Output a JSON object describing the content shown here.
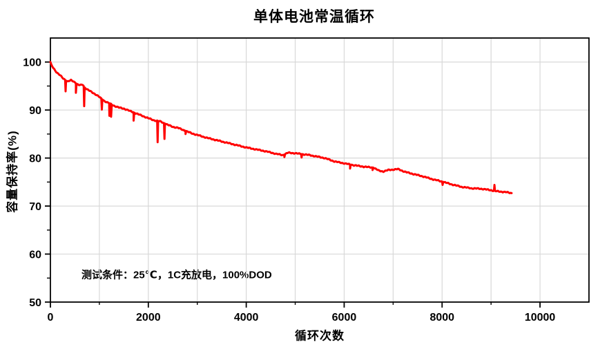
{
  "title": "单体电池常温循环",
  "y_axis_label": "容量保持率(%)",
  "x_axis_label": "循环次数",
  "annotation": "测试条件：25℃，1C充放电，100%DOD",
  "colors": {
    "curve": "#FF0000",
    "grid": "#D8D8D8",
    "axis": "#000000",
    "background": "#FFFFFF"
  },
  "chart_data": {
    "type": "line",
    "title": "单体电池常温循环",
    "xlabel": "循环次数",
    "ylabel": "容量保持率(%)",
    "xlim": [
      0,
      11000
    ],
    "ylim": [
      50,
      105
    ],
    "x_ticks_major": [
      0,
      2000,
      4000,
      6000,
      8000,
      10000
    ],
    "x_ticks_minor": [
      1000,
      3000,
      5000,
      7000,
      9000
    ],
    "y_ticks_major": [
      50,
      60,
      70,
      80,
      90,
      100
    ],
    "y_ticks_minor": [
      55,
      65,
      75,
      85,
      95
    ],
    "grid": {
      "x_step": 1000,
      "y_step": 10
    },
    "legend": null,
    "annotation": "测试条件：25℃，1C充放电，100%DOD",
    "series": [
      {
        "name": "容量保持率(%)",
        "color": "#FF0000",
        "start": [
          0,
          100
        ],
        "end": [
          9420,
          72.7
        ],
        "trend_points": [
          [
            0,
            100
          ],
          [
            30,
            99.2
          ],
          [
            60,
            98.8
          ],
          [
            100,
            98.2
          ],
          [
            150,
            97.6
          ],
          [
            200,
            97.2
          ],
          [
            250,
            96.7
          ],
          [
            300,
            96.3
          ],
          [
            350,
            95.9
          ],
          [
            420,
            96.2
          ],
          [
            470,
            96.0
          ],
          [
            520,
            95.6
          ],
          [
            570,
            95.2
          ],
          [
            620,
            95.2
          ],
          [
            660,
            95.3
          ],
          [
            700,
            94.7
          ],
          [
            750,
            94.3
          ],
          [
            800,
            94.0
          ],
          [
            850,
            93.7
          ],
          [
            900,
            93.4
          ],
          [
            950,
            93.1
          ],
          [
            1000,
            92.7
          ],
          [
            1100,
            91.9
          ],
          [
            1200,
            91.4
          ],
          [
            1300,
            90.9
          ],
          [
            1400,
            90.5
          ],
          [
            1500,
            90.3
          ],
          [
            1600,
            89.9
          ],
          [
            1700,
            89.5
          ],
          [
            1800,
            89.1
          ],
          [
            1900,
            88.7
          ],
          [
            2000,
            88.3
          ],
          [
            2100,
            87.9
          ],
          [
            2250,
            87.6
          ],
          [
            2400,
            86.9
          ],
          [
            2500,
            86.5
          ],
          [
            2600,
            86.3
          ],
          [
            2700,
            85.9
          ],
          [
            2800,
            85.5
          ],
          [
            2900,
            85.1
          ],
          [
            3000,
            84.8
          ],
          [
            3200,
            84.2
          ],
          [
            3400,
            83.7
          ],
          [
            3600,
            83.2
          ],
          [
            3800,
            82.7
          ],
          [
            4000,
            82.2
          ],
          [
            4200,
            81.8
          ],
          [
            4400,
            81.4
          ],
          [
            4600,
            80.9
          ],
          [
            4750,
            80.6
          ],
          [
            4850,
            81.1
          ],
          [
            5000,
            81.0
          ],
          [
            5150,
            80.8
          ],
          [
            5300,
            80.6
          ],
          [
            5450,
            80.3
          ],
          [
            5600,
            80.0
          ],
          [
            5800,
            79.3
          ],
          [
            6000,
            78.9
          ],
          [
            6200,
            78.5
          ],
          [
            6400,
            78.2
          ],
          [
            6600,
            78.0
          ],
          [
            6700,
            77.4
          ],
          [
            6800,
            77.2
          ],
          [
            6900,
            77.5
          ],
          [
            7000,
            77.6
          ],
          [
            7100,
            77.7
          ],
          [
            7250,
            77.1
          ],
          [
            7400,
            76.7
          ],
          [
            7600,
            76.2
          ],
          [
            7800,
            75.6
          ],
          [
            8000,
            75.1
          ],
          [
            8200,
            74.5
          ],
          [
            8400,
            74.0
          ],
          [
            8600,
            73.7
          ],
          [
            8800,
            73.6
          ],
          [
            9000,
            73.3
          ],
          [
            9100,
            73.1
          ],
          [
            9200,
            73.0
          ],
          [
            9300,
            72.9
          ],
          [
            9420,
            72.7
          ]
        ],
        "dip_spikes": [
          [
            310,
            93.9
          ],
          [
            520,
            93.6
          ],
          [
            690,
            90.8
          ],
          [
            1050,
            90.1
          ],
          [
            1205,
            88.8
          ],
          [
            1240,
            88.6
          ],
          [
            1700,
            87.8
          ],
          [
            2190,
            83.3
          ],
          [
            2330,
            84.0
          ],
          [
            2760,
            85.0
          ],
          [
            4780,
            80.2
          ],
          [
            5130,
            80.1
          ],
          [
            6120,
            77.8
          ],
          [
            6580,
            77.5
          ],
          [
            8010,
            74.4
          ]
        ],
        "up_spikes": [
          [
            9070,
            74.4
          ]
        ]
      }
    ]
  }
}
